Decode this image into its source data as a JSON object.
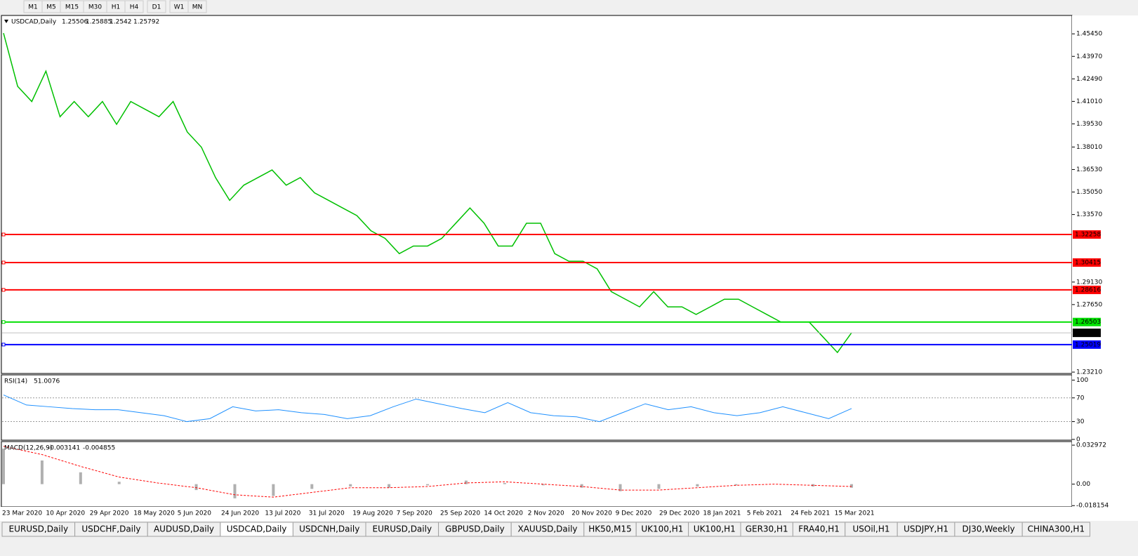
{
  "toolbar": {
    "buttons": [
      "M1",
      "M5",
      "M15",
      "M30",
      "H1",
      "H4",
      "D1",
      "W1",
      "MN"
    ]
  },
  "chart": {
    "symbol": "USDCAD,Daily",
    "ohlc": [
      1.25506,
      1.25885,
      1.2542,
      1.25792
    ],
    "ylim": [
      1.2312,
      1.4666
    ],
    "yticks": [
      {
        "value": 1.4545,
        "label": "1.45450"
      },
      {
        "value": 1.4397,
        "label": "1.43970"
      },
      {
        "value": 1.4249,
        "label": "1.42490"
      },
      {
        "value": 1.4101,
        "label": "1.41010"
      },
      {
        "value": 1.3953,
        "label": "1.39530"
      },
      {
        "value": 1.3801,
        "label": "1.38010"
      },
      {
        "value": 1.3653,
        "label": "1.36530"
      },
      {
        "value": 1.3505,
        "label": "1.35050"
      },
      {
        "value": 1.3357,
        "label": "1.33570"
      },
      {
        "value": 1.2913,
        "label": "1.29130"
      },
      {
        "value": 1.2765,
        "label": "1.27650"
      },
      {
        "value": 1.2321,
        "label": "1.23210"
      }
    ],
    "levels": [
      {
        "value": 1.32258,
        "color": "#ff0000"
      },
      {
        "value": 1.30415,
        "color": "#ff0000"
      },
      {
        "value": 1.28616,
        "color": "#ff0000"
      },
      {
        "value": 1.26503,
        "color": "#00e000"
      },
      {
        "value": 1.25019,
        "color": "#0000ff"
      }
    ],
    "current": 1.25792,
    "closes": [
      1.455,
      1.42,
      1.41,
      1.43,
      1.4,
      1.41,
      1.4,
      1.41,
      1.395,
      1.41,
      1.405,
      1.4,
      1.41,
      1.39,
      1.38,
      1.36,
      1.345,
      1.355,
      1.36,
      1.365,
      1.355,
      1.36,
      1.35,
      1.345,
      1.34,
      1.335,
      1.325,
      1.32,
      1.31,
      1.315,
      1.315,
      1.32,
      1.33,
      1.34,
      1.33,
      1.315,
      1.315,
      1.33,
      1.33,
      1.31,
      1.305,
      1.305,
      1.3,
      1.285,
      1.28,
      1.275,
      1.285,
      1.275,
      1.275,
      1.27,
      1.275,
      1.28,
      1.28,
      1.275,
      1.27,
      1.265,
      1.265,
      1.265,
      1.255,
      1.245,
      1.258
    ],
    "color": "#00c000"
  },
  "rsi": {
    "title": "RSI(14)",
    "value": 51.0076,
    "ylim": [
      -1.3,
      107.6
    ],
    "yticks": [
      100,
      70,
      30,
      0
    ],
    "levels": [
      70,
      30
    ],
    "color": "#1e90ff",
    "values": [
      75,
      58,
      55,
      52,
      50,
      50,
      45,
      40,
      30,
      35,
      55,
      48,
      50,
      45,
      42,
      35,
      40,
      55,
      68,
      60,
      52,
      45,
      62,
      45,
      40,
      38,
      30,
      45,
      60,
      50,
      55,
      45,
      40,
      45,
      55,
      45,
      35,
      52
    ]
  },
  "macd": {
    "title": "MACD(12,26,9)",
    "main": -0.003141,
    "signal": -0.004855,
    "ylim": [
      -0.0192,
      0.0354
    ],
    "yticks": [
      0.032972,
      {
        "value": 0,
        "label": "0.00"
      },
      -0.018154
    ],
    "histogram": [
      0.03,
      0.02,
      0.01,
      0.002,
      0,
      -0.005,
      -0.012,
      -0.01,
      -0.004,
      -0.002,
      -0.003,
      -0.001,
      0.003,
      0.001,
      -0.001,
      -0.003,
      -0.006,
      -0.004,
      -0.002,
      -0.001,
      0,
      -0.002,
      -0.003
    ],
    "signal_line": [
      0.032,
      0.025,
      0.015,
      0.006,
      0.001,
      -0.003,
      -0.009,
      -0.011,
      -0.007,
      -0.003,
      -0.003,
      -0.002,
      0.001,
      0.002,
      0,
      -0.002,
      -0.005,
      -0.005,
      -0.003,
      -0.001,
      0,
      -0.001,
      -0.002
    ]
  },
  "dates": [
    "23 Mar 2020",
    "10 Apr 2020",
    "29 Apr 2020",
    "18 May 2020",
    "5 Jun 2020",
    "24 Jun 2020",
    "13 Jul 2020",
    "31 Jul 2020",
    "19 Aug 2020",
    "7 Sep 2020",
    "25 Sep 2020",
    "14 Oct 2020",
    "2 Nov 2020",
    "20 Nov 2020",
    "9 Dec 2020",
    "29 Dec 2020",
    "18 Jan 2021",
    "5 Feb 2021",
    "24 Feb 2021",
    "15 Mar 2021"
  ],
  "tabs": [
    "EURUSD,Daily",
    "USDCHF,Daily",
    "AUDUSD,Daily",
    "USDCAD,Daily",
    "USDCNH,Daily",
    "EURUSD,Daily",
    "GBPUSD,Daily",
    "XAUUSD,Daily",
    "HK50,M15",
    "UK100,H1",
    "UK100,H1",
    "GER30,H1",
    "FRA40,H1",
    "USOil,H1",
    "USDJPY,H1",
    "DJ30,Weekly",
    "CHINA300,H1"
  ]
}
